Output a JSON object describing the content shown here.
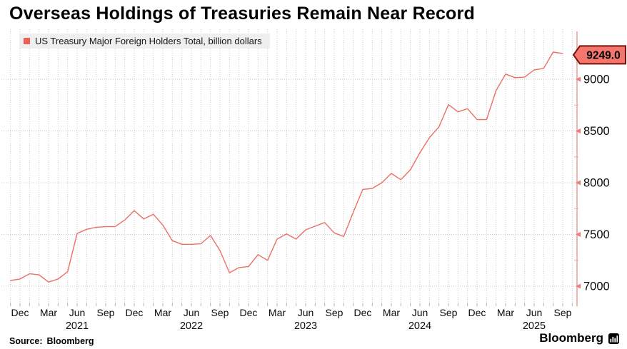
{
  "title": "Overseas Holdings of Treasuries Remain Near Record",
  "legend": {
    "label": "US Treasury Major Foreign Holders Total, billion dollars"
  },
  "source": {
    "prefix": "Source:",
    "name": "Bloomberg"
  },
  "brand": {
    "label": "Bloomberg"
  },
  "colors": {
    "line": "#ec6f66",
    "legend_swatch": "#ee5f57",
    "axis_line": "#eda49d",
    "axis_tick": "#e97f75",
    "minor_tick": "#f0aba4",
    "grid": "#c9c9c9",
    "bottom_tick": "#b3b3b3",
    "badge_bg": "#f5766d",
    "badge_border": "#7a120b",
    "badge_text": "#000000",
    "tick_text": "#0a0a0a",
    "legend_bg": "#efefef"
  },
  "chart_data": {
    "type": "line",
    "title": "Overseas Holdings of Treasuries Remain Near Record",
    "series_name": "US Treasury Major Foreign Holders Total",
    "unit": "billion dollars",
    "last_value_label": "9249.0",
    "last_value": 9249.0,
    "legend_position": "top-left",
    "grid": true,
    "y_axis": {
      "side": "right",
      "ticks": [
        7000,
        7500,
        8000,
        8500,
        9000
      ],
      "minor_ticks": [
        7250,
        7750,
        8250,
        8750
      ],
      "range_shown": [
        6950,
        9350
      ]
    },
    "x_axis": {
      "tick_months": [
        "Dec",
        "Mar",
        "Jun",
        "Sep"
      ],
      "year_label_month": "Jun",
      "year_labels": [
        "2021",
        "2022",
        "2023",
        "2024",
        "2025"
      ]
    },
    "months": [
      "Nov 2020",
      "Dec 2020",
      "Jan 2021",
      "Feb 2021",
      "Mar 2021",
      "Apr 2021",
      "May 2021",
      "Jun 2021",
      "Jul 2021",
      "Aug 2021",
      "Sep 2021",
      "Oct 2021",
      "Nov 2021",
      "Dec 2021",
      "Jan 2022",
      "Feb 2022",
      "Mar 2022",
      "Apr 2022",
      "May 2022",
      "Jun 2022",
      "Jul 2022",
      "Aug 2022",
      "Sep 2022",
      "Oct 2022",
      "Nov 2022",
      "Dec 2022",
      "Jan 2023",
      "Feb 2023",
      "Mar 2023",
      "Apr 2023",
      "May 2023",
      "Jun 2023",
      "Jul 2023",
      "Aug 2023",
      "Sep 2023",
      "Oct 2023",
      "Nov 2023",
      "Dec 2023",
      "Jan 2024",
      "Feb 2024",
      "Mar 2024",
      "Apr 2024",
      "May 2024",
      "Jun 2024",
      "Jul 2024",
      "Aug 2024",
      "Sep 2024",
      "Oct 2024",
      "Nov 2024",
      "Dec 2024",
      "Jan 2025",
      "Feb 2025",
      "Mar 2025",
      "Apr 2025",
      "May 2025",
      "Jun 2025",
      "Jul 2025",
      "Aug 2025",
      "Sep 2025"
    ],
    "values": [
      7055,
      7070,
      7120,
      7110,
      7040,
      7070,
      7140,
      7510,
      7550,
      7570,
      7575,
      7575,
      7640,
      7730,
      7650,
      7695,
      7590,
      7440,
      7405,
      7405,
      7410,
      7490,
      7345,
      7130,
      7180,
      7190,
      7305,
      7250,
      7455,
      7505,
      7455,
      7545,
      7580,
      7615,
      7515,
      7480,
      7715,
      7935,
      7945,
      8000,
      8090,
      8030,
      8125,
      8290,
      8435,
      8540,
      8755,
      8685,
      8715,
      8610,
      8610,
      8890,
      9050,
      9015,
      9020,
      9090,
      9105,
      9262,
      9249
    ]
  }
}
